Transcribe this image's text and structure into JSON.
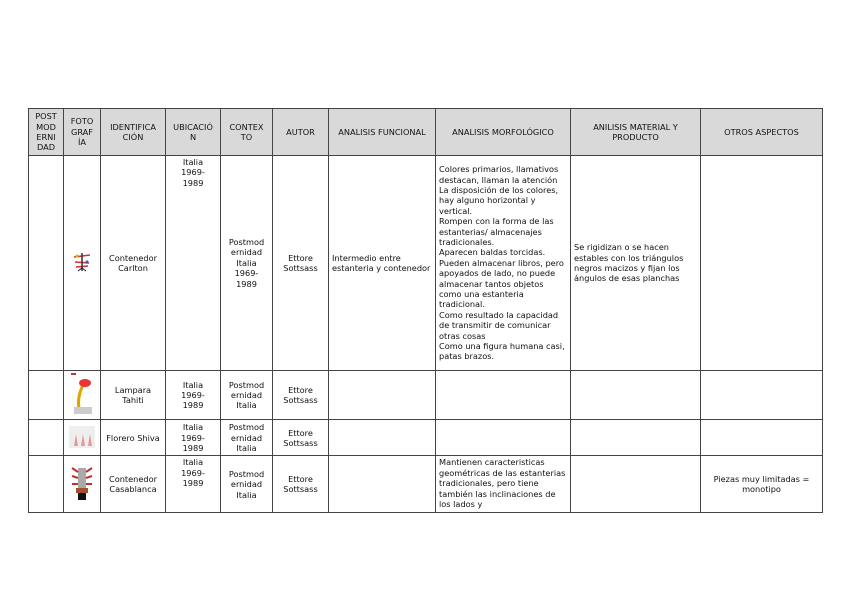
{
  "headers": [
    "POST MOD ERNI DAD",
    "FOTO GRAF ÍA",
    "IDENTIFICA CIÓN",
    "UBICACIÓ N",
    "CONTEX TO",
    "AUTOR",
    "ANALISIS FUNCIONAL",
    "ANALISIS MORFOLÓGICO",
    "ANILISIS MATERIAL Y PRODUCTO",
    "OTROS ASPECTOS"
  ],
  "rows": [
    {
      "identificacion": "Contenedor Carlton",
      "ubicacion": "Italia\n1969-\n1989",
      "contexto": "Postmod\nernidad\nItalia\n1969-\n1989",
      "autor": "Ettore\nSottsass",
      "funcional": "Intermedio entre estanteria y contenedor",
      "morfologico": "Colores primarios, llamativos destacan, llaman la atención\nLa disposición de los colores, hay alguno horizontal y vertical.\nRompen con la forma de las estanterias/ almacenajes tradicionales.\nAparecen baldas torcidas.\nPueden almacenar libros, pero apoyados de lado, no puede almacenar tantos objetos como una estanteria tradicional.\nComo resultado la capacidad de transmitir de comunicar otras cosas\nComo una figura humana casi, patas brazos.",
      "material": "Se rigidizan o se hacen estables con los triángulos negros macizos y fijan los ángulos de esas planchas",
      "otros": ""
    },
    {
      "identificacion": "Lampara Tahiti",
      "ubicacion": "Italia\n1969-\n1989",
      "contexto": "Postmod\nernidad\nItalia",
      "autor": "Ettore\nSottsass",
      "funcional": "",
      "morfologico": "",
      "material": "",
      "otros": ""
    },
    {
      "identificacion": "Florero Shiva",
      "ubicacion": "Italia\n1969-\n1989",
      "contexto": "Postmod\nernidad\nItalia",
      "autor": "Ettore\nSottsass",
      "funcional": "",
      "morfologico": "",
      "material": "",
      "otros": ""
    },
    {
      "identificacion": "Contenedor Casablanca",
      "ubicacion": "Italia\n1969-\n1989",
      "contexto": "Postmod\nernidad\nItalia",
      "autor": "Ettore\nSottsass",
      "funcional": "",
      "morfologico": "Mantienen caracteristicas geométricas de las estanterias tradicionales, pero tiene también las inclinaciones de los lados y",
      "material": "",
      "otros": "Piezas muy limitadas = monotipo"
    }
  ]
}
